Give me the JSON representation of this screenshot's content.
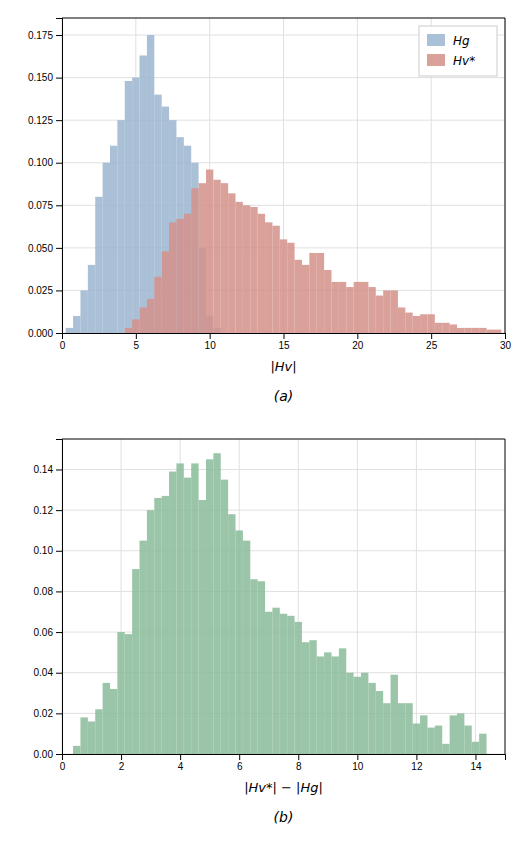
{
  "chart_data": [
    {
      "type": "bar",
      "title": "(a)",
      "xlabel": "|Hv|",
      "xlim": [
        0,
        30
      ],
      "ylim": [
        0,
        0.185
      ],
      "xticks": [
        0,
        5,
        10,
        15,
        20,
        25,
        30
      ],
      "yticks": [
        {
          "value": 0,
          "label": "0.000"
        },
        0.025,
        {
          "value": 0.05,
          "label": "0.050"
        },
        0.075,
        {
          "value": 0.1,
          "label": "0.100"
        },
        0.125,
        {
          "value": 0.15,
          "label": "0.150"
        },
        0.175
      ],
      "grid": true,
      "legend": "upper right",
      "series": [
        {
          "name": "Hg",
          "color": "#9ab5d0",
          "x": [
            0.5,
            1.0,
            1.5,
            2.0,
            2.5,
            3.0,
            3.5,
            4.0,
            4.5,
            5.0,
            5.5,
            6.0,
            6.5,
            7.0,
            7.5,
            8.0,
            8.5,
            9.0,
            9.5,
            10.0,
            10.5
          ],
          "values": [
            0.003,
            0.01,
            0.025,
            0.04,
            0.08,
            0.1,
            0.11,
            0.125,
            0.148,
            0.15,
            0.163,
            0.175,
            0.14,
            0.133,
            0.125,
            0.115,
            0.11,
            0.1,
            0.05,
            0.01,
            0.003
          ]
        },
        {
          "name": "Hv*",
          "color": "#d4908a",
          "x": [
            4.5,
            5.0,
            5.5,
            6.0,
            6.5,
            7.0,
            7.5,
            8.0,
            8.5,
            9.0,
            9.5,
            10.0,
            10.5,
            11.0,
            11.5,
            12.0,
            12.5,
            13.0,
            13.5,
            14.0,
            14.5,
            15.0,
            15.5,
            16.0,
            16.5,
            17.0,
            17.5,
            18.0,
            18.5,
            19.0,
            19.5,
            20.0,
            20.5,
            21.0,
            21.5,
            22.0,
            22.5,
            23.0,
            23.5,
            24.0,
            24.5,
            25.0,
            25.5,
            26.0,
            26.5,
            27.0,
            27.5,
            28.0,
            28.5,
            29.0,
            29.5
          ],
          "values": [
            0.003,
            0.008,
            0.015,
            0.02,
            0.033,
            0.048,
            0.065,
            0.067,
            0.07,
            0.085,
            0.088,
            0.096,
            0.09,
            0.088,
            0.082,
            0.077,
            0.075,
            0.074,
            0.07,
            0.065,
            0.063,
            0.055,
            0.053,
            0.043,
            0.04,
            0.047,
            0.047,
            0.037,
            0.03,
            0.03,
            0.027,
            0.03,
            0.03,
            0.027,
            0.022,
            0.025,
            0.025,
            0.015,
            0.012,
            0.01,
            0.011,
            0.011,
            0.006,
            0.006,
            0.005,
            0.003,
            0.003,
            0.003,
            0.003,
            0.002,
            0.002
          ]
        }
      ]
    },
    {
      "type": "bar",
      "title": "(b)",
      "xlabel": "|Hv*| − |Hg|",
      "xlim": [
        0,
        15
      ],
      "ylim": [
        0,
        0.155
      ],
      "xticks": [
        0,
        2,
        4,
        6,
        8,
        10,
        12,
        14
      ],
      "yticks": [
        {
          "value": 0,
          "label": "0.00"
        },
        0.02,
        0.04,
        0.06,
        0.08,
        {
          "value": 0.1,
          "label": "0.10"
        },
        0.12,
        0.14
      ],
      "grid": true,
      "color": "#88bb99",
      "x": [
        0.5,
        0.75,
        1.0,
        1.25,
        1.5,
        1.75,
        2.0,
        2.25,
        2.5,
        2.75,
        3.0,
        3.25,
        3.5,
        3.75,
        4.0,
        4.25,
        4.5,
        4.75,
        5.0,
        5.25,
        5.5,
        5.75,
        6.0,
        6.25,
        6.5,
        6.75,
        7.0,
        7.25,
        7.5,
        7.75,
        8.0,
        8.25,
        8.5,
        8.75,
        9.0,
        9.25,
        9.5,
        9.75,
        10.0,
        10.25,
        10.5,
        10.75,
        11.0,
        11.25,
        11.5,
        11.75,
        12.0,
        12.25,
        12.5,
        12.75,
        13.0,
        13.25,
        13.5,
        13.75,
        14.0,
        14.25,
        14.5,
        14.75
      ],
      "values": [
        0.004,
        0.018,
        0.016,
        0.022,
        0.035,
        0.032,
        0.06,
        0.059,
        0.091,
        0.105,
        0.12,
        0.126,
        0.127,
        0.139,
        0.143,
        0.136,
        0.143,
        0.125,
        0.145,
        0.148,
        0.135,
        0.118,
        0.11,
        0.105,
        0.086,
        0.085,
        0.07,
        0.072,
        0.069,
        0.068,
        0.065,
        0.055,
        0.056,
        0.048,
        0.05,
        0.048,
        0.052,
        0.04,
        0.038,
        0.04,
        0.035,
        0.031,
        0.025,
        0.039,
        0.025,
        0.025,
        0.015,
        0.019,
        0.013,
        0.014,
        0.005,
        0.019,
        0.02,
        0.014,
        0.006,
        0.01,
        0.0,
        0.0
      ]
    }
  ]
}
